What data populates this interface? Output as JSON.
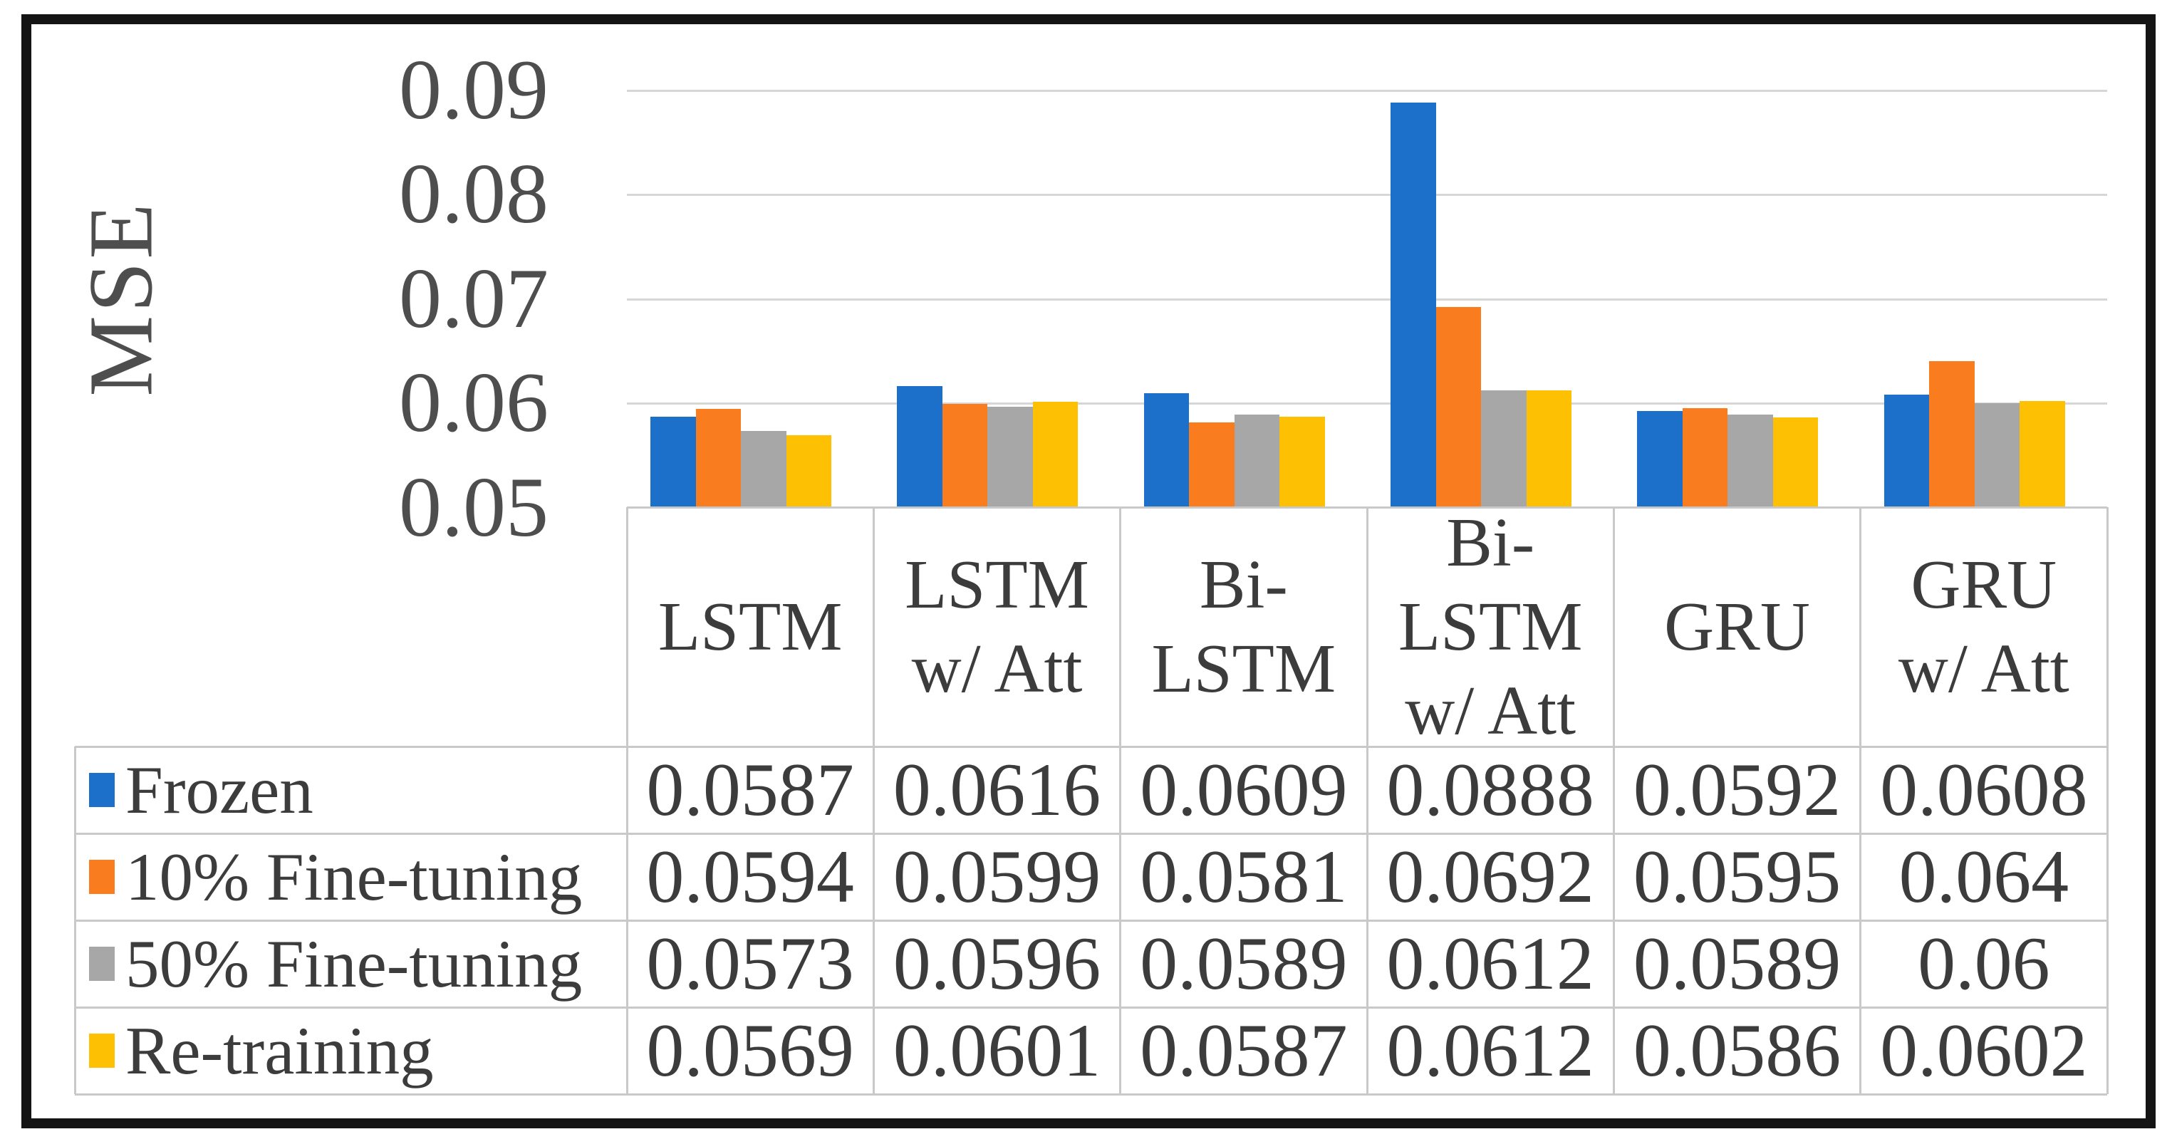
{
  "figure": {
    "kind": "excel-style clustered column chart with data table",
    "background": "#ffffff",
    "frame_color": "#141414"
  },
  "axis": {
    "label": "MSE",
    "tick_labels": [
      "0.09",
      "0.08",
      "0.07",
      "0.06",
      "0.05"
    ]
  },
  "chart_data": {
    "type": "bar",
    "title": "",
    "xlabel": "",
    "ylabel": "MSE",
    "ylim": [
      0.05,
      0.09
    ],
    "y_ticks": [
      0.09,
      0.08,
      0.07,
      0.06,
      0.05
    ],
    "grid": true,
    "legend_position": "left column of data table below chart",
    "categories": [
      "LSTM",
      "LSTM w/ Att",
      "Bi-LSTM",
      "Bi-LSTM w/ Att",
      "GRU",
      "GRU w/ Att"
    ],
    "category_display": [
      "LSTM",
      "LSTM\nw/ Att",
      "Bi-\nLSTM",
      "Bi-\nLSTM\nw/ Att",
      "GRU",
      "GRU\nw/ Att"
    ],
    "series": [
      {
        "name": "Frozen",
        "color": "#1d70c9",
        "values": [
          0.0587,
          0.0616,
          0.0609,
          0.0888,
          0.0592,
          0.0608
        ],
        "display_values": [
          "0.0587",
          "0.0616",
          "0.0609",
          "0.0888",
          "0.0592",
          "0.0608"
        ]
      },
      {
        "name": "10% Fine-tuning",
        "color": "#f97c1f",
        "values": [
          0.0594,
          0.0599,
          0.0581,
          0.0692,
          0.0595,
          0.064
        ],
        "display_values": [
          "0.0594",
          "0.0599",
          "0.0581",
          "0.0692",
          "0.0595",
          "0.064"
        ]
      },
      {
        "name": "50% Fine-tuning",
        "color": "#a7a7a7",
        "values": [
          0.0573,
          0.0596,
          0.0589,
          0.0612,
          0.0589,
          0.06
        ],
        "display_values": [
          "0.0573",
          "0.0596",
          "0.0589",
          "0.0612",
          "0.0589",
          "0.06"
        ]
      },
      {
        "name": "Re-training",
        "color": "#fec002",
        "values": [
          0.0569,
          0.0601,
          0.0587,
          0.0612,
          0.0586,
          0.0602
        ],
        "display_values": [
          "0.0569",
          "0.0601",
          "0.0587",
          "0.0612",
          "0.0586",
          "0.0602"
        ]
      }
    ],
    "colors": {
      "gridline": "#d6d6d6",
      "table_border": "#c9c9c9",
      "text": "#3c3c3c",
      "axis_text": "#4e4e4e"
    }
  }
}
